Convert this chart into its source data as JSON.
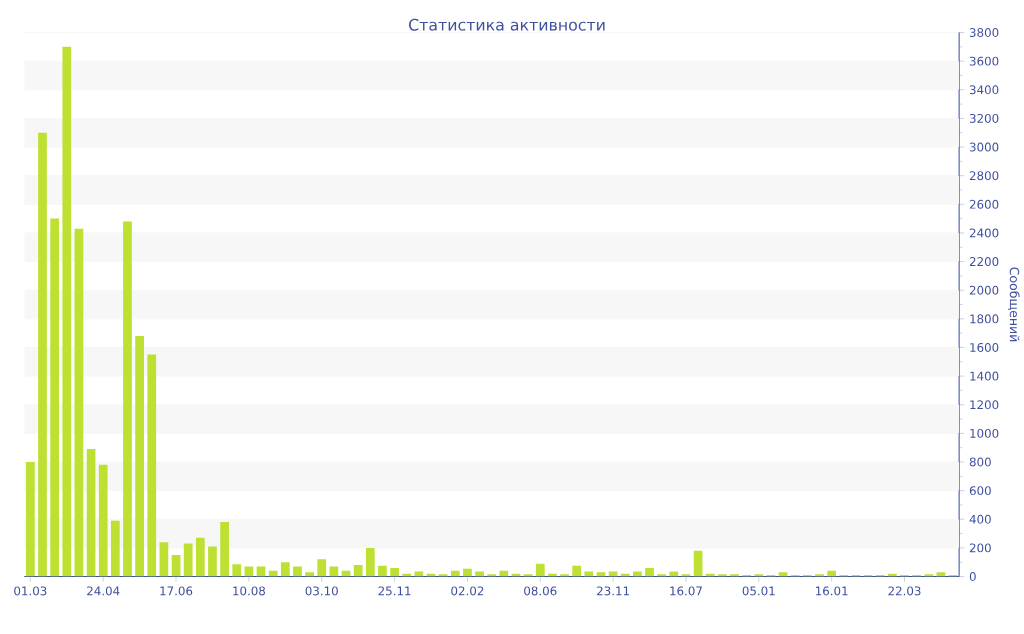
{
  "chart_data": {
    "type": "bar",
    "title": "Статистика активности",
    "ylabel": "Сообщений",
    "categories": [
      "01.03",
      null,
      null,
      null,
      null,
      null,
      "24.04",
      null,
      null,
      null,
      null,
      null,
      "17.06",
      null,
      null,
      null,
      null,
      null,
      "10.08",
      null,
      null,
      null,
      null,
      null,
      "03.10",
      null,
      null,
      null,
      null,
      null,
      "25.11",
      null,
      null,
      null,
      null,
      null,
      "02.02",
      null,
      null,
      null,
      null,
      null,
      "08.06",
      null,
      null,
      null,
      null,
      null,
      "23.11",
      null,
      null,
      null,
      null,
      null,
      "16.07",
      null,
      null,
      null,
      null,
      null,
      "05.01",
      null,
      null,
      null,
      null,
      null,
      "16.01",
      null,
      null,
      null,
      null,
      null,
      "22.03",
      null,
      null,
      null,
      null
    ],
    "values": [
      800,
      3100,
      2500,
      3700,
      2430,
      890,
      780,
      390,
      2480,
      1680,
      1550,
      240,
      150,
      230,
      270,
      210,
      380,
      85,
      70,
      70,
      40,
      100,
      70,
      30,
      120,
      70,
      40,
      80,
      200,
      75,
      60,
      20,
      35,
      20,
      15,
      40,
      55,
      35,
      15,
      40,
      20,
      15,
      90,
      20,
      15,
      75,
      35,
      30,
      35,
      20,
      35,
      60,
      15,
      35,
      15,
      180,
      20,
      15,
      15,
      10,
      15,
      10,
      30,
      10,
      10,
      15,
      40,
      10,
      10,
      10,
      10,
      20,
      10,
      10,
      15,
      30,
      10
    ],
    "color": "#bde033",
    "ylim": [
      0,
      3800
    ],
    "yticks": [
      0,
      200,
      400,
      600,
      800,
      1000,
      1200,
      1400,
      1600,
      1800,
      2000,
      2200,
      2400,
      2600,
      2800,
      3000,
      3200,
      3400,
      3600,
      3800
    ],
    "grid": "y"
  }
}
